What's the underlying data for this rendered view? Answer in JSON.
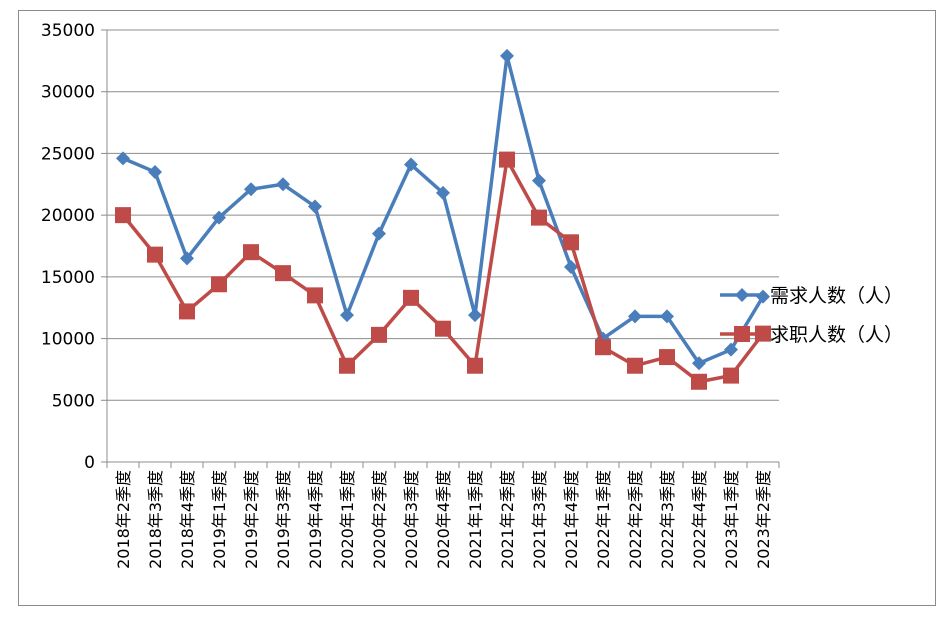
{
  "chart_data": {
    "type": "line",
    "categories": [
      "2018年2季度",
      "2018年3季度",
      "2018年4季度",
      "2019年1季度",
      "2019年2季度",
      "2019年3季度",
      "2019年4季度",
      "2020年1季度",
      "2020年2季度",
      "2020年3季度",
      "2020年4季度",
      "2021年1季度",
      "2021年2季度",
      "2021年3季度",
      "2021年4季度",
      "2022年1季度",
      "2022年2季度",
      "2022年3季度",
      "2022年4季度",
      "2023年1季度",
      "2023年2季度"
    ],
    "series": [
      {
        "name": "需求人数（人）",
        "color": "#4a7ebb",
        "marker": "diamond",
        "values": [
          24600,
          23500,
          16500,
          19800,
          22100,
          22500,
          20700,
          11900,
          18500,
          24100,
          21800,
          11900,
          32900,
          22800,
          15800,
          10000,
          11800,
          11800,
          8000,
          9100,
          13400
        ]
      },
      {
        "name": "求职人数（人）",
        "color": "#be4b48",
        "marker": "square",
        "values": [
          20000,
          16800,
          12200,
          14400,
          17000,
          15300,
          13500,
          7800,
          10300,
          13300,
          10800,
          7800,
          24500,
          19800,
          17800,
          9300,
          7800,
          8500,
          6500,
          7000,
          10400
        ]
      }
    ],
    "yticks": [
      0,
      5000,
      10000,
      15000,
      20000,
      25000,
      30000,
      35000
    ],
    "ylim": [
      0,
      35000
    ],
    "grid": true,
    "legend_position": "right"
  }
}
